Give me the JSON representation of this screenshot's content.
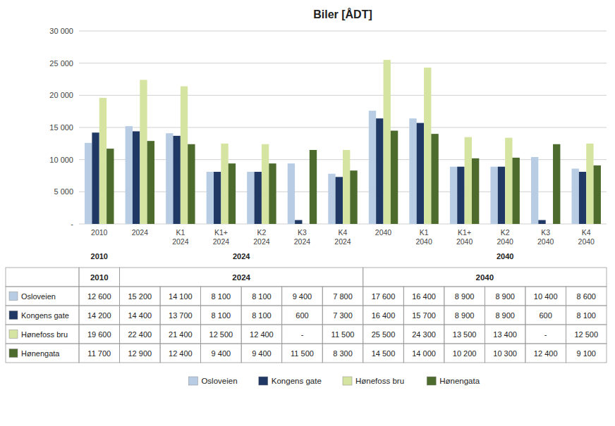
{
  "chart_data": {
    "type": "bar",
    "title": "Biler [ÅDT]",
    "categories": [
      "2010",
      "2024",
      "K1\n2024",
      "K1+\n2024",
      "K2\n2024",
      "K3\n2024",
      "K4\n2024",
      "2040",
      "K1\n2040",
      "K1+\n2040",
      "K2\n2040",
      "K3\n2040",
      "K4\n2040"
    ],
    "series": [
      {
        "name": "Osloveien",
        "color": "#b8cce4",
        "values": [
          12600,
          15200,
          14100,
          8100,
          8100,
          9400,
          7800,
          17600,
          16400,
          8900,
          8900,
          10400,
          8600
        ],
        "value_labels": [
          "12 600",
          "15 200",
          "14 100",
          "8 100",
          "8 100",
          "9 400",
          "7 800",
          "17 600",
          "16 400",
          "8 900",
          "8 900",
          "10 400",
          "8 600"
        ]
      },
      {
        "name": "Kongens gate",
        "color": "#1f3864",
        "values": [
          14200,
          14400,
          13700,
          8100,
          8100,
          600,
          7300,
          16400,
          15700,
          8900,
          8900,
          600,
          8100
        ],
        "value_labels": [
          "14 200",
          "14 400",
          "13 700",
          "8 100",
          "8 100",
          "600",
          "7 300",
          "16 400",
          "15 700",
          "8 900",
          "8 900",
          "600",
          "8 100"
        ]
      },
      {
        "name": "Hønefoss bru",
        "color": "#d6e4a1",
        "values": [
          19600,
          22400,
          21400,
          12500,
          12400,
          0,
          11500,
          25500,
          24300,
          13500,
          13400,
          0,
          12500
        ],
        "value_labels": [
          "19 600",
          "22 400",
          "21 400",
          "12 500",
          "12 400",
          "-",
          "11 500",
          "25 500",
          "24 300",
          "13 500",
          "13 400",
          "-",
          "12 500"
        ]
      },
      {
        "name": "Hønengata",
        "color": "#4e6b2e",
        "values": [
          11700,
          12900,
          12400,
          9400,
          9400,
          11500,
          8300,
          14500,
          14000,
          10200,
          10300,
          12400,
          9100
        ],
        "value_labels": [
          "11 700",
          "12 900",
          "12 400",
          "9 400",
          "9 400",
          "11 500",
          "8 300",
          "14 500",
          "14 000",
          "10 200",
          "10 300",
          "12 400",
          "9 100"
        ]
      }
    ],
    "ylim": [
      0,
      30000
    ],
    "yticks": [
      {
        "value": 0,
        "label": "-"
      },
      {
        "value": 5000,
        "label": "5 000"
      },
      {
        "value": 10000,
        "label": "10 000"
      },
      {
        "value": 15000,
        "label": "15 000"
      },
      {
        "value": 20000,
        "label": "20 000"
      },
      {
        "value": 25000,
        "label": "25 000"
      },
      {
        "value": 30000,
        "label": "30 000"
      }
    ],
    "annotations": [
      {
        "text": "2010",
        "x": 0
      },
      {
        "text": "2024",
        "x": 3.5
      },
      {
        "text": "2040",
        "x": 10.0
      }
    ],
    "table_header": [
      {
        "text": "2010",
        "span": 1
      },
      {
        "text": "2024",
        "span": 6
      },
      {
        "text": "2040",
        "span": 6
      }
    ],
    "grid": true,
    "legend": "bottom"
  }
}
